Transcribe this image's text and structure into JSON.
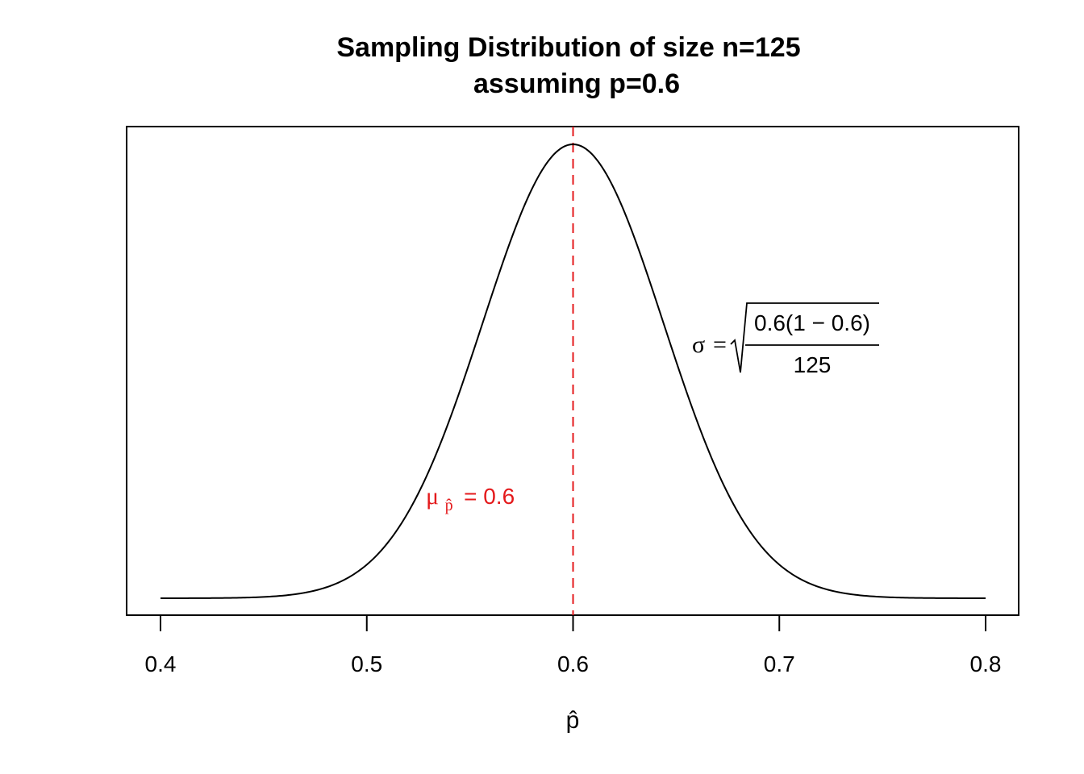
{
  "chart_data": {
    "type": "line",
    "title_line1": "Sampling Distribution of size n=125",
    "title_line2": "assuming p=0.6",
    "xlabel": "p̂",
    "ylabel": "",
    "xlim": [
      0.4,
      0.8
    ],
    "x_ticks": [
      "0.4",
      "0.5",
      "0.6",
      "0.7",
      "0.8"
    ],
    "y_axis_shown": false,
    "series": [
      {
        "distribution": "normal",
        "mean": 0.6,
        "sd_expression": "sqrt(0.6*(1-0.6)/125)",
        "sd": 0.04382,
        "color": "#000000"
      }
    ],
    "mean_line": {
      "x": 0.6,
      "color": "#e41a1c",
      "style": "dashed"
    },
    "annotations": {
      "mu_symbol": "μ",
      "mu_subscript": "p̂",
      "mu_text": "= 0.6",
      "sigma_symbol": "σ",
      "sigma_eq": "=",
      "sigma_numerator": "0.6(1 − 0.6)",
      "sigma_denominator": "125"
    },
    "colors": {
      "mean": "#e41a1c",
      "curve": "#000000"
    }
  }
}
